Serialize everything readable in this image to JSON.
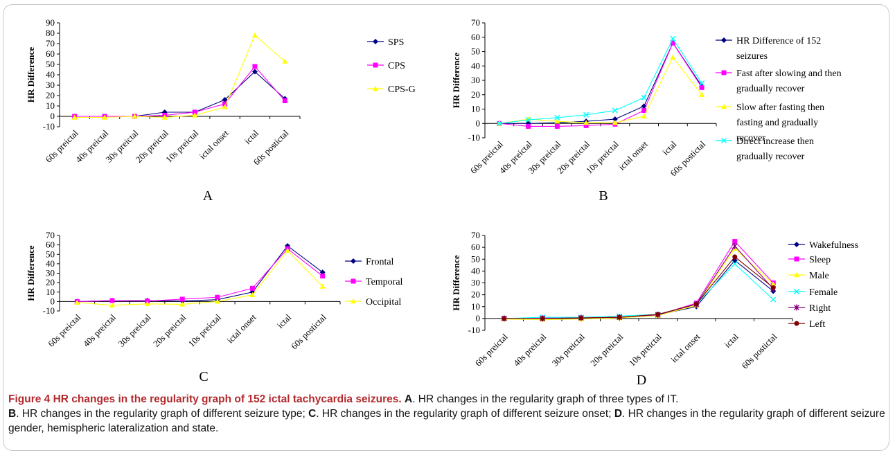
{
  "chart_data": [
    {
      "type": "line",
      "panel": "A",
      "categories": [
        "60s preictal",
        "40s preictal",
        "30s preictal",
        "20s preictal",
        "10s preictal",
        "ictal onset",
        "ictal",
        "60s postictal"
      ],
      "ylabel": "HR Difference",
      "ylim": [
        -10,
        90
      ],
      "yticks": [
        -10,
        0,
        10,
        20,
        30,
        40,
        50,
        60,
        70,
        80,
        90
      ],
      "legend_position": "right",
      "series": [
        {
          "name": "SPS",
          "color": "#000080",
          "marker": "diamond",
          "values": [
            0,
            0,
            0,
            4,
            4,
            16,
            43,
            17
          ]
        },
        {
          "name": "CPS",
          "color": "#ff00ff",
          "marker": "square",
          "values": [
            0,
            0,
            0,
            1,
            4,
            12,
            48,
            15
          ]
        },
        {
          "name": "CPS-G",
          "color": "#ffff00",
          "marker": "triangle",
          "values": [
            -1,
            -1,
            0,
            -1,
            1,
            9,
            78,
            53
          ]
        }
      ]
    },
    {
      "type": "line",
      "panel": "B",
      "categories": [
        "60s preictal",
        "40s preictal",
        "30s preictal",
        "20s preictal",
        "10s preictal",
        "ictal onset",
        "ictal",
        "60s postictal"
      ],
      "ylabel": "HR Difference",
      "ylim": [
        -10,
        70
      ],
      "yticks": [
        -10,
        0,
        10,
        20,
        30,
        40,
        50,
        60,
        70
      ],
      "legend_position": "right",
      "series": [
        {
          "name": "HR Difference of 152 seizures",
          "color": "#000080",
          "marker": "diamond",
          "values": [
            0,
            0,
            0.5,
            1.5,
            3,
            12,
            56,
            26
          ]
        },
        {
          "name": "Fast after slowing and then gradually recover",
          "color": "#ff00ff",
          "marker": "square",
          "values": [
            0,
            -2,
            -2,
            -1.5,
            -0.5,
            9,
            56,
            25
          ]
        },
        {
          "name": "Slow after fasting then fasting and gradually recover",
          "color": "#ffff00",
          "marker": "triangle",
          "values": [
            0,
            3,
            1.5,
            0.5,
            0.5,
            5,
            46,
            20
          ]
        },
        {
          "name": "Direct increase then gradually recover",
          "color": "#00ffff",
          "marker": "x",
          "values": [
            0,
            2.5,
            4,
            6,
            9,
            18,
            59,
            28
          ]
        }
      ]
    },
    {
      "type": "line",
      "panel": "C",
      "categories": [
        "60s preictal",
        "40s preictal",
        "30s preictal",
        "20s preictal",
        "10s preictal",
        "ictal onset",
        "ictal",
        "60s postictal"
      ],
      "ylabel": "HR Difference",
      "ylim": [
        -10,
        70
      ],
      "yticks": [
        -10,
        0,
        10,
        20,
        30,
        40,
        50,
        60,
        70
      ],
      "legend_position": "right",
      "series": [
        {
          "name": "Frontal",
          "color": "#000080",
          "marker": "diamond",
          "values": [
            0,
            1,
            1,
            0.5,
            2,
            10,
            59,
            31
          ]
        },
        {
          "name": "Temporal",
          "color": "#ff00ff",
          "marker": "square",
          "values": [
            0,
            1,
            0.5,
            2.5,
            4.5,
            14,
            56,
            27
          ]
        },
        {
          "name": "Occipital",
          "color": "#ffff00",
          "marker": "triangle",
          "values": [
            -1,
            -4,
            -2.5,
            -3,
            0,
            7,
            54,
            16
          ]
        }
      ]
    },
    {
      "type": "line",
      "panel": "D",
      "categories": [
        "60s preictal",
        "40s preictal",
        "30s preictal",
        "20s preictal",
        "10s preictal",
        "ictal onset",
        "ictal",
        "60s postictal"
      ],
      "ylabel": "HR Difference",
      "ylim": [
        -10,
        70
      ],
      "yticks": [
        -10,
        0,
        10,
        20,
        30,
        40,
        50,
        60,
        70
      ],
      "legend_position": "right",
      "series": [
        {
          "name": "Wakefulness",
          "color": "#000080",
          "marker": "diamond",
          "values": [
            0,
            0,
            0,
            0.5,
            3,
            10,
            49,
            23
          ]
        },
        {
          "name": "Sleep",
          "color": "#ff00ff",
          "marker": "square",
          "values": [
            0,
            0.5,
            0.5,
            1,
            3,
            13,
            65,
            30
          ]
        },
        {
          "name": "Male",
          "color": "#ffff00",
          "marker": "triangle",
          "values": [
            -0.5,
            -1,
            -0.5,
            0.5,
            2.5,
            11,
            59,
            29
          ]
        },
        {
          "name": "Female",
          "color": "#00ffff",
          "marker": "x",
          "values": [
            0,
            1,
            1,
            2,
            3.5,
            12,
            46,
            16
          ]
        },
        {
          "name": "Right",
          "color": "#800080",
          "marker": "star",
          "values": [
            0,
            0,
            0.5,
            1,
            3,
            12,
            61,
            25
          ]
        },
        {
          "name": "Left",
          "color": "#800000",
          "marker": "circle",
          "values": [
            0,
            0,
            0.5,
            1,
            3.5,
            12,
            52,
            26
          ]
        }
      ]
    }
  ],
  "caption": {
    "title": "Figure 4 HR changes in the regularity graph of 152 ictal tachycardia seizures.",
    "parts": [
      {
        "label": "A",
        "text": ". HR changes in the regularity graph of three types of IT."
      },
      {
        "label": "B",
        "text": ". HR changes in the regularity graph of different seizure type; "
      },
      {
        "label": "C",
        "text": ". HR changes in the regularity graph of different seizure onset; "
      },
      {
        "label": "D",
        "text": ". HR changes in the regularity graph of different seizure gender, hemispheric lateralization and state."
      }
    ]
  }
}
